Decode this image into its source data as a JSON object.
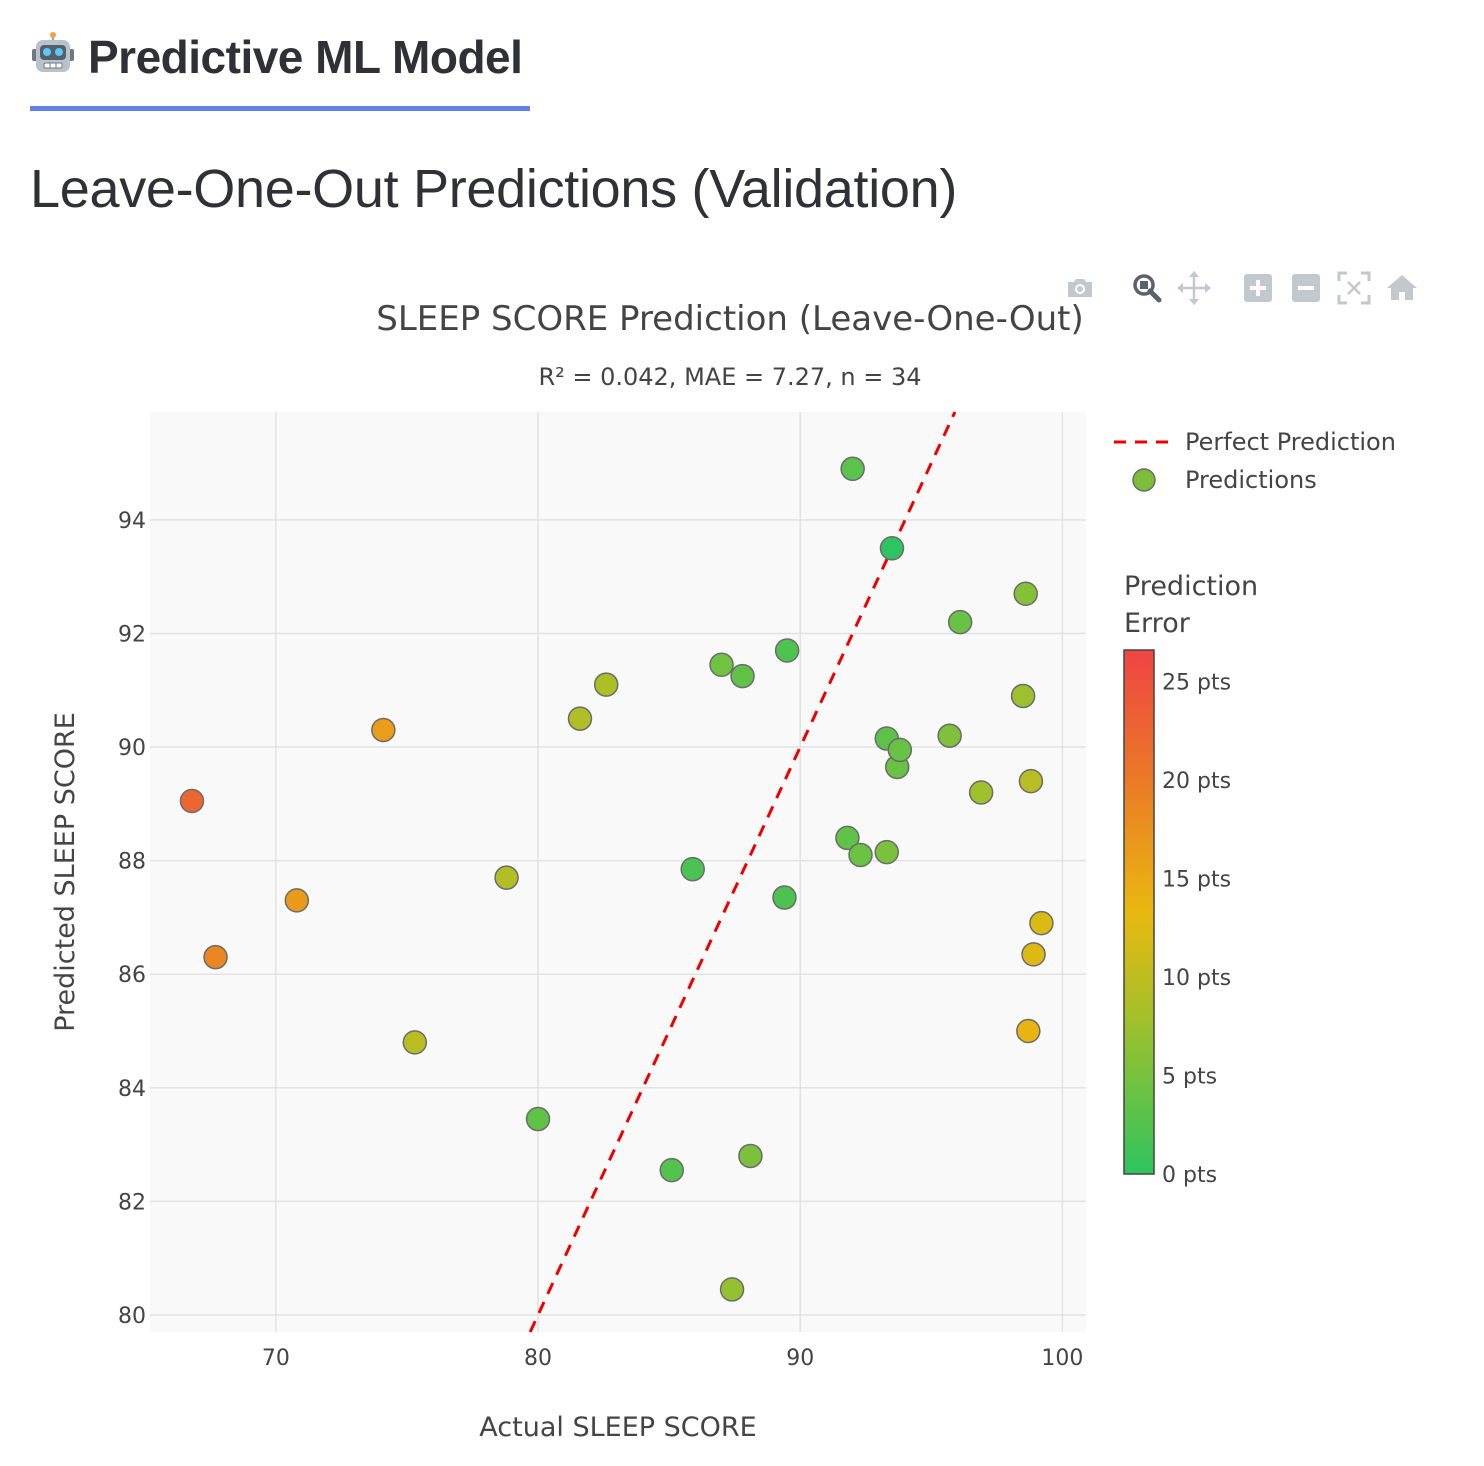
{
  "header": {
    "icon": "robot-icon",
    "title": "Predictive ML Model",
    "accent_color": "#667eea"
  },
  "section": {
    "title": "Leave-One-Out Predictions (Validation)"
  },
  "modebar": {
    "buttons": [
      {
        "name": "camera-icon",
        "label": "Download plot as a png"
      },
      {
        "name": "zoom-icon",
        "label": "Zoom"
      },
      {
        "name": "pan-icon",
        "label": "Pan"
      },
      {
        "name": "zoom-in-icon",
        "label": "Zoom in"
      },
      {
        "name": "zoom-out-icon",
        "label": "Zoom out"
      },
      {
        "name": "autoscale-icon",
        "label": "Autoscale"
      },
      {
        "name": "home-icon",
        "label": "Reset axes"
      }
    ]
  },
  "chart_data": {
    "type": "scatter",
    "title": "SLEEP SCORE Prediction (Leave-One-Out)",
    "subtitle": "R² = 0.042, MAE = 7.27, n = 34",
    "xlabel": "Actual SLEEP SCORE",
    "ylabel": "Predicted SLEEP SCORE",
    "xlim": [
      65.2,
      100.9
    ],
    "ylim": [
      79.7,
      95.9
    ],
    "xticks": [
      70,
      80,
      90,
      100
    ],
    "yticks": [
      80,
      82,
      84,
      86,
      88,
      90,
      92,
      94
    ],
    "xtick_labels": [
      "70",
      "80",
      "90",
      "100"
    ],
    "ytick_labels": [
      "80",
      "82",
      "84",
      "86",
      "88",
      "90",
      "92",
      "94"
    ],
    "grid": true,
    "plot_bgcolor": "#f9f9f9",
    "perfect_line": {
      "name": "Perfect Prediction",
      "x": [
        79.7,
        95.9
      ],
      "y": [
        79.7,
        95.9
      ],
      "color": "#ee0000"
    },
    "legend": {
      "position": "top-right",
      "entries": [
        {
          "name": "Perfect Prediction",
          "symbol": "dashed-line",
          "color": "#ee0000"
        },
        {
          "name": "Predictions",
          "symbol": "circle",
          "color": "#7cbe3a"
        }
      ]
    },
    "colorbar": {
      "title_lines": [
        "Prediction",
        "Error"
      ],
      "range": [
        0,
        26.6
      ],
      "ticks": [
        0,
        5,
        10,
        15,
        20,
        25
      ],
      "tick_labels": [
        "0 pts",
        "5 pts",
        "10 pts",
        "15 pts",
        "20 pts",
        "25 pts"
      ],
      "colorscale": [
        [
          0,
          "#2ec45f"
        ],
        [
          0.3,
          "#a4c02a"
        ],
        [
          0.5,
          "#e9b80f"
        ],
        [
          0.75,
          "#ea7a26"
        ],
        [
          1,
          "#ef4444"
        ]
      ]
    },
    "series": [
      {
        "name": "Predictions",
        "points": [
          {
            "x": 66.8,
            "y": 89.05
          },
          {
            "x": 67.7,
            "y": 86.3
          },
          {
            "x": 70.8,
            "y": 87.3
          },
          {
            "x": 74.1,
            "y": 90.3
          },
          {
            "x": 75.3,
            "y": 84.8
          },
          {
            "x": 78.8,
            "y": 87.7
          },
          {
            "x": 80.0,
            "y": 83.45
          },
          {
            "x": 81.6,
            "y": 90.5
          },
          {
            "x": 82.6,
            "y": 91.1
          },
          {
            "x": 85.1,
            "y": 82.55
          },
          {
            "x": 85.9,
            "y": 87.85
          },
          {
            "x": 87.0,
            "y": 91.45
          },
          {
            "x": 87.4,
            "y": 80.45
          },
          {
            "x": 87.8,
            "y": 91.25
          },
          {
            "x": 88.1,
            "y": 82.8
          },
          {
            "x": 89.4,
            "y": 87.35
          },
          {
            "x": 89.5,
            "y": 91.7
          },
          {
            "x": 91.8,
            "y": 88.4
          },
          {
            "x": 92.0,
            "y": 94.9
          },
          {
            "x": 92.3,
            "y": 88.1
          },
          {
            "x": 93.3,
            "y": 88.15
          },
          {
            "x": 93.3,
            "y": 90.15
          },
          {
            "x": 93.5,
            "y": 93.5
          },
          {
            "x": 93.7,
            "y": 89.65
          },
          {
            "x": 93.8,
            "y": 89.95
          },
          {
            "x": 95.7,
            "y": 90.2
          },
          {
            "x": 96.1,
            "y": 92.2
          },
          {
            "x": 96.9,
            "y": 89.2
          },
          {
            "x": 98.5,
            "y": 90.9
          },
          {
            "x": 98.6,
            "y": 92.7
          },
          {
            "x": 98.7,
            "y": 85.0
          },
          {
            "x": 98.8,
            "y": 89.4
          },
          {
            "x": 98.9,
            "y": 86.35
          },
          {
            "x": 99.2,
            "y": 86.9
          }
        ]
      }
    ]
  }
}
